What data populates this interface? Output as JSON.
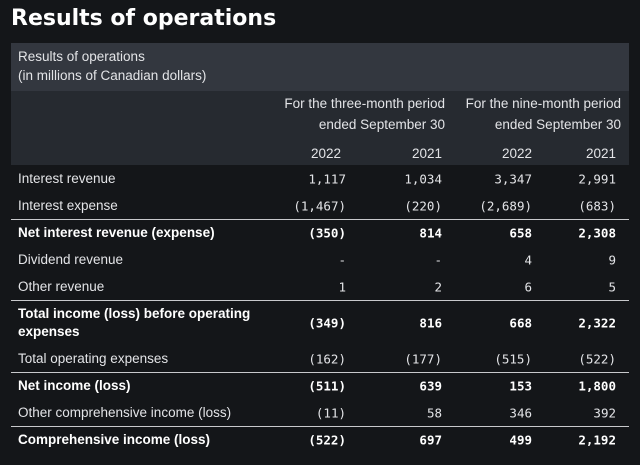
{
  "title": "Results of operations",
  "caption": {
    "line1": "Results of operations",
    "line2": "(in millions of Canadian dollars)"
  },
  "header": {
    "group1": [
      "For the three-month period",
      "ended September 30"
    ],
    "group2": [
      "For the nine-month period",
      "ended September 30"
    ],
    "years": [
      "2022",
      "2021",
      "2022",
      "2021"
    ]
  },
  "rows": [
    {
      "label": "Interest revenue",
      "values": [
        "1,117",
        "1,034",
        "3,347",
        "2,991"
      ]
    },
    {
      "label": "Interest expense",
      "values": [
        "(1,467)",
        "(220)",
        "(2,689)",
        "(683)"
      ]
    },
    {
      "label": "Net interest revenue (expense)",
      "values": [
        "(350)",
        "814",
        "658",
        "2,308"
      ]
    },
    {
      "label": "Dividend revenue",
      "values": [
        "-",
        "-",
        "4",
        "9"
      ]
    },
    {
      "label": "Other revenue",
      "values": [
        "1",
        "2",
        "6",
        "5"
      ]
    },
    {
      "label": "Total income (loss) before operating expenses",
      "values": [
        "(349)",
        "816",
        "668",
        "2,322"
      ]
    },
    {
      "label": "Total operating expenses",
      "values": [
        "(162)",
        "(177)",
        "(515)",
        "(522)"
      ]
    },
    {
      "label": "Net income (loss)",
      "values": [
        "(511)",
        "639",
        "153",
        "1,800"
      ]
    },
    {
      "label": "Other comprehensive income (loss)",
      "values": [
        "(11)",
        "58",
        "346",
        "392"
      ]
    },
    {
      "label": "Comprehensive income (loss)",
      "values": [
        "(522)",
        "697",
        "499",
        "2,192"
      ]
    }
  ]
}
